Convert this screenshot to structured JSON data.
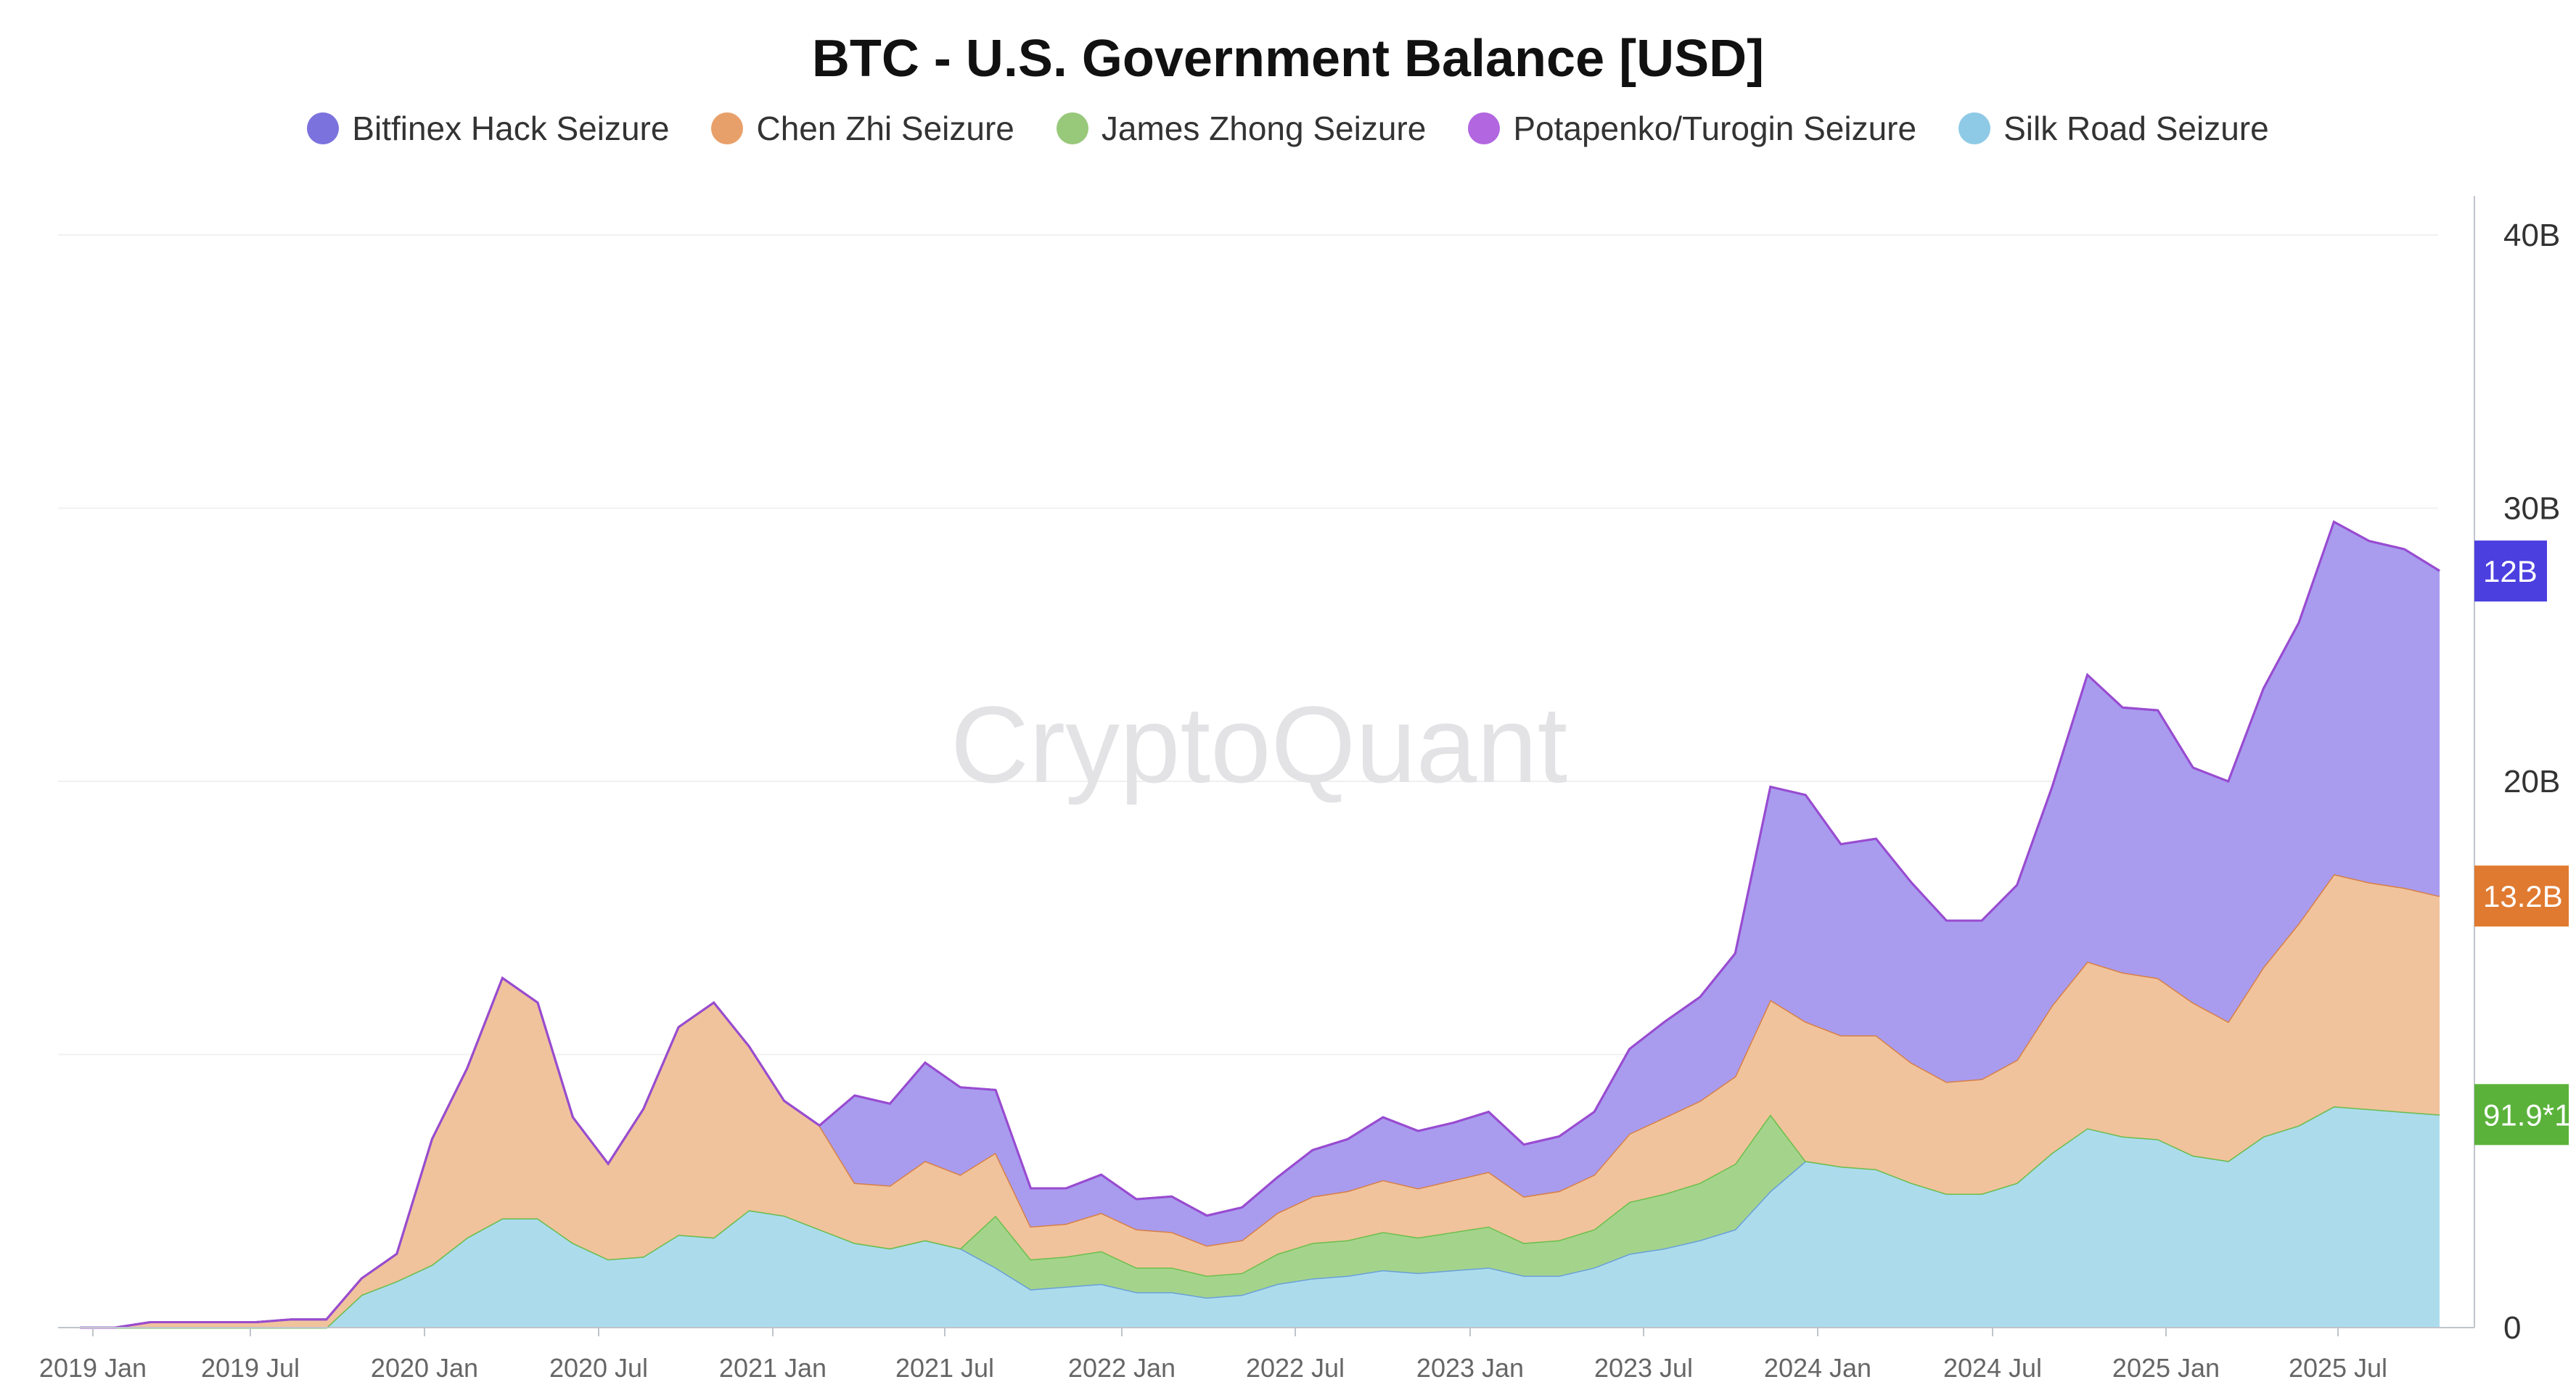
{
  "chart_data": {
    "type": "area",
    "title": "BTC - U.S. Government Balance [USD]",
    "watermark": "CryptoQuant",
    "stacked": true,
    "y_ticks": [
      "0",
      "20B",
      "30B",
      "40B"
    ],
    "ylim": [
      0,
      40
    ],
    "y_unit": "B",
    "x_ticks": [
      "2019 Jan",
      "2019 Jul",
      "2020 Jan",
      "2020 Jul",
      "2021 Jan",
      "2021 Jul",
      "2022 Jan",
      "2022 Jul",
      "2023 Jan",
      "2023 Jul",
      "2024 Jan",
      "2024 Jul",
      "2025 Jan",
      "2025 Jul"
    ],
    "x": [
      "2019 Jan",
      "2019 Apr",
      "2019 Jul",
      "2019 Oct",
      "2020 Jan",
      "2020 Apr",
      "2020 Jul",
      "2020 Oct",
      "2020 Nov",
      "2020 Dec",
      "2021 Jan",
      "2021 Feb",
      "2021 Mar",
      "2021 Apr",
      "2021 May",
      "2021 Jun",
      "2021 Jul",
      "2021 Aug",
      "2021 Sep",
      "2021 Oct",
      "2021 Nov",
      "2021 Dec",
      "2022 Jan",
      "2022 Feb",
      "2022 Mar",
      "2022 Apr",
      "2022 May",
      "2022 Jun",
      "2022 Jul",
      "2022 Aug",
      "2022 Sep",
      "2022 Oct",
      "2022 Nov",
      "2022 Dec",
      "2023 Jan",
      "2023 Feb",
      "2023 Mar",
      "2023 Apr",
      "2023 May",
      "2023 Jun",
      "2023 Jul",
      "2023 Aug",
      "2023 Sep",
      "2023 Oct",
      "2023 Nov",
      "2023 Dec",
      "2024 Jan",
      "2024 Feb",
      "2024 Mar",
      "2024 Apr",
      "2024 May",
      "2024 Jun",
      "2024 Jul",
      "2024 Aug",
      "2024 Sep",
      "2024 Oct",
      "2024 Nov",
      "2024 Dec",
      "2025 Jan",
      "2025 Feb",
      "2025 Mar",
      "2025 Apr",
      "2025 May",
      "2025 Jun",
      "2025 Jul",
      "2025 Aug",
      "2025 Sep",
      "2025 Oct"
    ],
    "series": [
      {
        "name": "Silk Road Seizure",
        "color": "#8ecae6",
        "fill": "#acdcec",
        "line": "#6a9fd8",
        "values": [
          0,
          0,
          0,
          0,
          0,
          0,
          0,
          0,
          1.2,
          1.7,
          2.3,
          3.3,
          4.0,
          4.0,
          3.1,
          2.5,
          2.6,
          3.4,
          3.3,
          4.3,
          4.1,
          3.6,
          3.1,
          2.9,
          3.2,
          2.9,
          2.2,
          1.4,
          1.5,
          1.6,
          1.3,
          1.3,
          1.1,
          1.2,
          1.6,
          1.8,
          1.9,
          2.1,
          2.0,
          2.1,
          2.2,
          1.9,
          1.9,
          2.2,
          2.7,
          2.9,
          3.2,
          3.6,
          5.0,
          6.1,
          5.9,
          5.8,
          5.3,
          4.9,
          4.9,
          5.3,
          6.4,
          7.3,
          7.0,
          6.9,
          6.3,
          6.1,
          7.0,
          7.4,
          8.1,
          8.0,
          7.9,
          7.8
        ]
      },
      {
        "name": "James Zhong Seizure",
        "color": "#98c87a",
        "fill": "#a4d48c",
        "line": "#6cbf4c",
        "values": [
          0,
          0,
          0,
          0,
          0,
          0,
          0,
          0,
          0,
          0,
          0,
          0,
          0,
          0,
          0,
          0,
          0,
          0,
          0,
          0,
          0,
          0,
          0,
          0,
          0,
          0,
          1.9,
          1.1,
          1.1,
          1.2,
          0.9,
          0.9,
          0.8,
          0.8,
          1.1,
          1.3,
          1.3,
          1.4,
          1.3,
          1.4,
          1.5,
          1.2,
          1.3,
          1.4,
          1.9,
          2.0,
          2.1,
          2.4,
          2.8,
          0,
          0,
          0,
          0,
          0,
          0,
          0,
          0,
          0,
          0,
          0,
          0,
          0,
          0,
          0,
          0,
          0,
          0,
          0
        ]
      },
      {
        "name": "Chen Zhi Seizure",
        "color": "#e8a06a",
        "fill": "#f0c39c",
        "line": "#d77f46",
        "values": [
          0,
          0,
          0.2,
          0.2,
          0.2,
          0.2,
          0.3,
          0.3,
          0.6,
          1.0,
          4.6,
          6.2,
          8.8,
          7.9,
          4.6,
          3.5,
          5.4,
          7.6,
          8.6,
          6.0,
          4.2,
          3.8,
          2.2,
          2.3,
          2.9,
          2.7,
          2.3,
          1.2,
          1.2,
          1.4,
          1.4,
          1.3,
          1.1,
          1.2,
          1.5,
          1.7,
          1.8,
          1.9,
          1.8,
          1.9,
          2.0,
          1.7,
          1.8,
          2.0,
          2.5,
          2.8,
          3.0,
          3.2,
          4.2,
          5.1,
          4.8,
          4.9,
          4.4,
          4.1,
          4.2,
          4.5,
          5.4,
          6.1,
          6.0,
          5.9,
          5.6,
          5.1,
          6.2,
          7.4,
          8.5,
          8.3,
          8.2,
          8.0
        ]
      },
      {
        "name": "Bitfinex Hack Seizure",
        "color": "#7b72dd",
        "fill": "#a99cef",
        "line": "#6d5fd8",
        "values": [
          0,
          0,
          0,
          0,
          0,
          0,
          0,
          0,
          0,
          0,
          0,
          0,
          0,
          0,
          0,
          0,
          0,
          0,
          0,
          0,
          0,
          0,
          3.2,
          3.0,
          3.6,
          3.2,
          2.3,
          1.4,
          1.3,
          1.4,
          1.1,
          1.3,
          1.1,
          1.2,
          1.3,
          1.7,
          1.9,
          2.3,
          2.1,
          2.1,
          2.2,
          1.9,
          2.0,
          2.3,
          3.1,
          3.5,
          3.8,
          4.5,
          7.8,
          8.3,
          7.0,
          7.2,
          6.6,
          5.9,
          5.8,
          6.4,
          8.0,
          10.5,
          9.7,
          9.8,
          8.6,
          8.8,
          10.2,
          11.0,
          12.9,
          12.5,
          12.4,
          11.9
        ]
      },
      {
        "name": "Potapenko/Turogin Seizure",
        "color": "#b266e0",
        "fill": "#b266e0",
        "line": "#9a4bd0",
        "values": [
          0,
          0,
          0,
          0,
          0,
          0,
          0,
          0,
          0,
          0,
          0,
          0,
          0,
          0,
          0,
          0,
          0,
          0,
          0,
          0,
          0,
          0,
          0,
          0,
          0,
          0,
          0,
          0,
          0,
          0,
          0,
          0,
          0,
          0,
          0,
          0,
          0,
          0,
          0,
          0,
          0,
          0,
          0,
          0,
          0,
          0,
          0,
          0,
          0,
          0,
          0,
          0,
          0,
          0,
          0,
          0,
          0,
          0,
          0,
          0,
          0,
          0,
          0,
          0,
          0,
          0,
          0,
          0.01
        ]
      }
    ],
    "value_labels": [
      {
        "series": "Bitfinex Hack Seizure",
        "text": "12B",
        "bg": "#4b3fe0"
      },
      {
        "series": "Chen Zhi Seizure",
        "text": "13.2B",
        "bg": "#e07a30"
      },
      {
        "series": "Silk Road Seizure",
        "text": "91.9*1",
        "bg": "#5ab23a"
      }
    ],
    "legend_position": "top-center",
    "grid": true
  }
}
